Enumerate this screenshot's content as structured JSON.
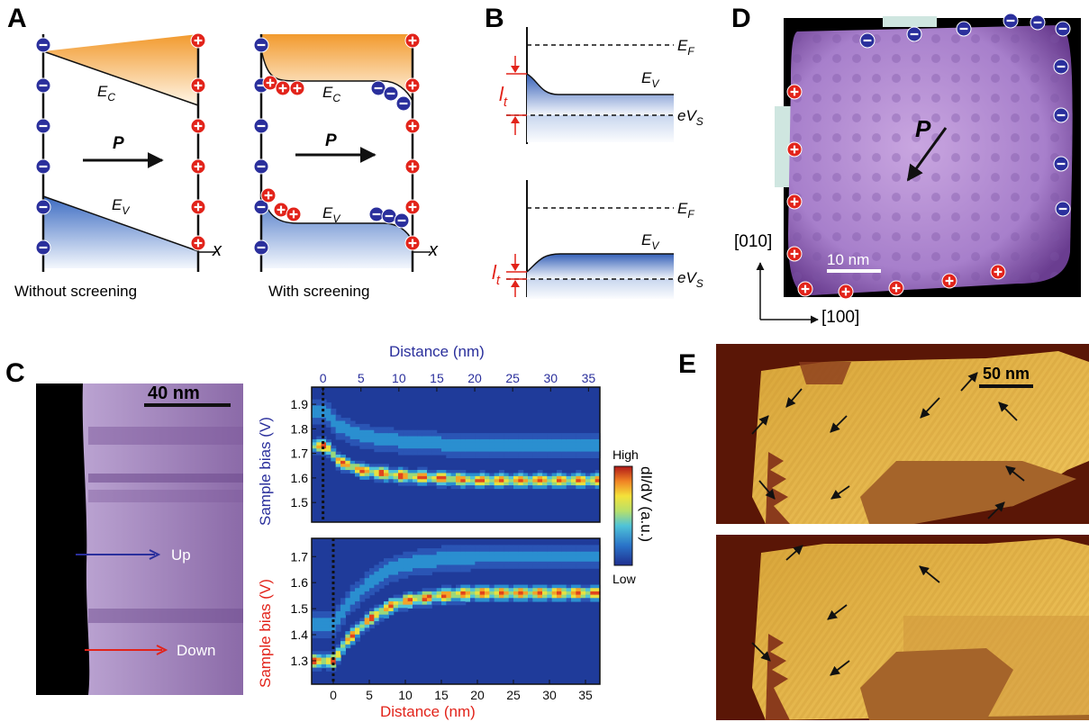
{
  "panels": {
    "A": {
      "label": "A",
      "left_caption": "Without screening",
      "right_caption": "With screening",
      "ec": "E",
      "ec_sub": "C",
      "ev": "E",
      "ev_sub": "V",
      "p": "P",
      "x": "x"
    },
    "B": {
      "label": "B",
      "ef": "E",
      "ef_sub": "F",
      "ev": "E",
      "ev_sub": "V",
      "evs": "eV",
      "evs_sub": "S",
      "it": "l",
      "it_sub": "t"
    },
    "C": {
      "label": "C",
      "scalebar": "40 nm",
      "up": "Up",
      "down": "Down",
      "top_xlabel": "Distance (nm)",
      "bottom_xlabel": "Distance (nm)",
      "top_ylabel": "Sample bias (V)",
      "bottom_ylabel": "Sample bias (V)",
      "colorbar_label": "dI/dV (a.u.)",
      "colorbar_high": "High",
      "colorbar_low": "Low",
      "x_ticks": [
        "0",
        "5",
        "10",
        "15",
        "20",
        "25",
        "30",
        "35"
      ],
      "top_y_ticks": [
        "1.9",
        "1.8",
        "1.7",
        "1.6",
        "1.5"
      ],
      "bottom_y_ticks": [
        "1.7",
        "1.6",
        "1.5",
        "1.4",
        "1.3"
      ]
    },
    "D": {
      "label": "D",
      "scalebar": "10 nm",
      "p": "P",
      "axis_y": "[010]",
      "axis_x": "[100]"
    },
    "E": {
      "label": "E",
      "scalebar": "50 nm"
    }
  },
  "chart_data": [
    {
      "type": "heatmap",
      "xlabel": "Distance (nm)",
      "ylabel": "Sample bias (V)",
      "xlim": [
        -1.5,
        36.5
      ],
      "ylim": [
        1.42,
        1.97
      ],
      "x_ticks": [
        0,
        5,
        10,
        15,
        20,
        25,
        30,
        35
      ],
      "y_ticks": [
        1.5,
        1.6,
        1.7,
        1.8,
        1.9
      ],
      "peak_curve": {
        "x": [
          0.5,
          2,
          5,
          10,
          15,
          20,
          25,
          30,
          35
        ],
        "y": [
          1.73,
          1.67,
          1.63,
          1.61,
          1.6,
          1.59,
          1.59,
          1.59,
          1.59
        ]
      }
    },
    {
      "type": "heatmap",
      "xlabel": "Distance (nm)",
      "ylabel": "Sample bias (V)",
      "xlim": [
        -3,
        37
      ],
      "ylim": [
        1.21,
        1.77
      ],
      "x_ticks": [
        0,
        5,
        10,
        15,
        20,
        25,
        30,
        35
      ],
      "y_ticks": [
        1.3,
        1.4,
        1.5,
        1.6,
        1.7
      ],
      "peak_curve": {
        "x": [
          0,
          2,
          5,
          8,
          10,
          15,
          20,
          25,
          30,
          35
        ],
        "y": [
          1.3,
          1.38,
          1.46,
          1.51,
          1.53,
          1.55,
          1.56,
          1.56,
          1.56,
          1.56
        ]
      }
    }
  ]
}
